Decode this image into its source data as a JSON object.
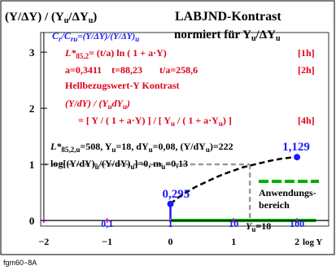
{
  "chart_data": {
    "type": "line",
    "title": "LABJND-Kontrast",
    "subtitle": "normiert für Yᵤ/ΔYᵤ",
    "ylabel_main": "(Y/ΔY) / (Y",
    "ylabel_sub_u": "u",
    "ylabel_mid": "/ΔY",
    "ylabel_sub_u2": "u",
    "ylabel_close": ")",
    "cr_label": "C",
    "cr_sub": "r",
    "cr_rest": "/C",
    "cr_sub2": "ru",
    "cr_eq": "=(Y/ΔY)/(Y/ΔY)",
    "cr_sub3": "u",
    "norm_text": "normiert für Y",
    "norm_sub": "u",
    "norm_rest": "/ΔY",
    "norm_sub2": "u",
    "xlabel": "log Y",
    "xlim": [
      -2,
      2.5
    ],
    "ylim": [
      0,
      3.4
    ],
    "x_ticks": [
      "-2",
      "-1",
      "0",
      "1",
      "2"
    ],
    "y_ticks": [
      "0",
      "1",
      "2",
      "3"
    ],
    "upper_x_ticks": [
      "0,1",
      "1",
      "10",
      "100"
    ],
    "curve_x": [
      0,
      0.1,
      0.25,
      0.4,
      0.55,
      0.7,
      0.85,
      1.0,
      1.15,
      1.3,
      1.45,
      1.6,
      1.75,
      1.9,
      2.0
    ],
    "curve_y": [
      0.295,
      0.39,
      0.5,
      0.6,
      0.68,
      0.76,
      0.83,
      0.89,
      0.95,
      0.99,
      1.03,
      1.07,
      1.1,
      1.12,
      1.129
    ],
    "point_low": {
      "x": 0,
      "y": 0.295,
      "label": "0,295"
    },
    "point_high": {
      "x": 2,
      "y": 1.129,
      "label": "1,129"
    },
    "ref_y": 1.0,
    "ref_x": 1.255,
    "range_x": [
      0,
      2.3
    ],
    "lines": {
      "l1a": "L*",
      "l1b": "85,2",
      "l1c": "= (t/a) ln ( 1 + a·Y)",
      "l1tag": "[1h]",
      "l2": "a=0,3411    t=88,23       t/a=258,6",
      "l2tag": "[2h]",
      "l3": "Hellbezugswert-Y Kontrast",
      "l4a": "(Y/dY) / (Y",
      "l4b": "u",
      "l4c": "dY",
      "l4d": "u",
      "l4e": ")",
      "l5": "= [ Y / ( 1 + a·Y) ] / [ Y",
      "l5b": "u",
      "l5c": " / ( 1 + a·Y",
      "l5d": "u",
      "l5e": ") ]",
      "l5tag": "[4h]",
      "l6": "L*",
      "l6b": "85,2,u",
      "l6c": "=508, Y",
      "l6d": "u",
      "l6e": "=18, dY",
      "l6f": "u",
      "l6g": "=0,08, (Y/dY",
      "l6h": "u",
      "l6i": ")=222",
      "l7": "log[(Y/dY)",
      "l7b": "u",
      "l7c": "/(Y/dY)",
      "l7d": "u",
      "l7e": "]=0, m",
      "l7f": "u",
      "l7g": "=0,13"
    },
    "legend_box": [
      "Anwendungs-",
      "bereich"
    ],
    "yu_label": "Y",
    "yu_sub": "u",
    "yu_val": "=18",
    "footer": "fgm60−8A",
    "colors": {
      "red": "#e0001a",
      "blue": "#1a1aff",
      "green": "#00b000",
      "grey": "#9a9a9a",
      "magenta": "#e000e0"
    }
  }
}
